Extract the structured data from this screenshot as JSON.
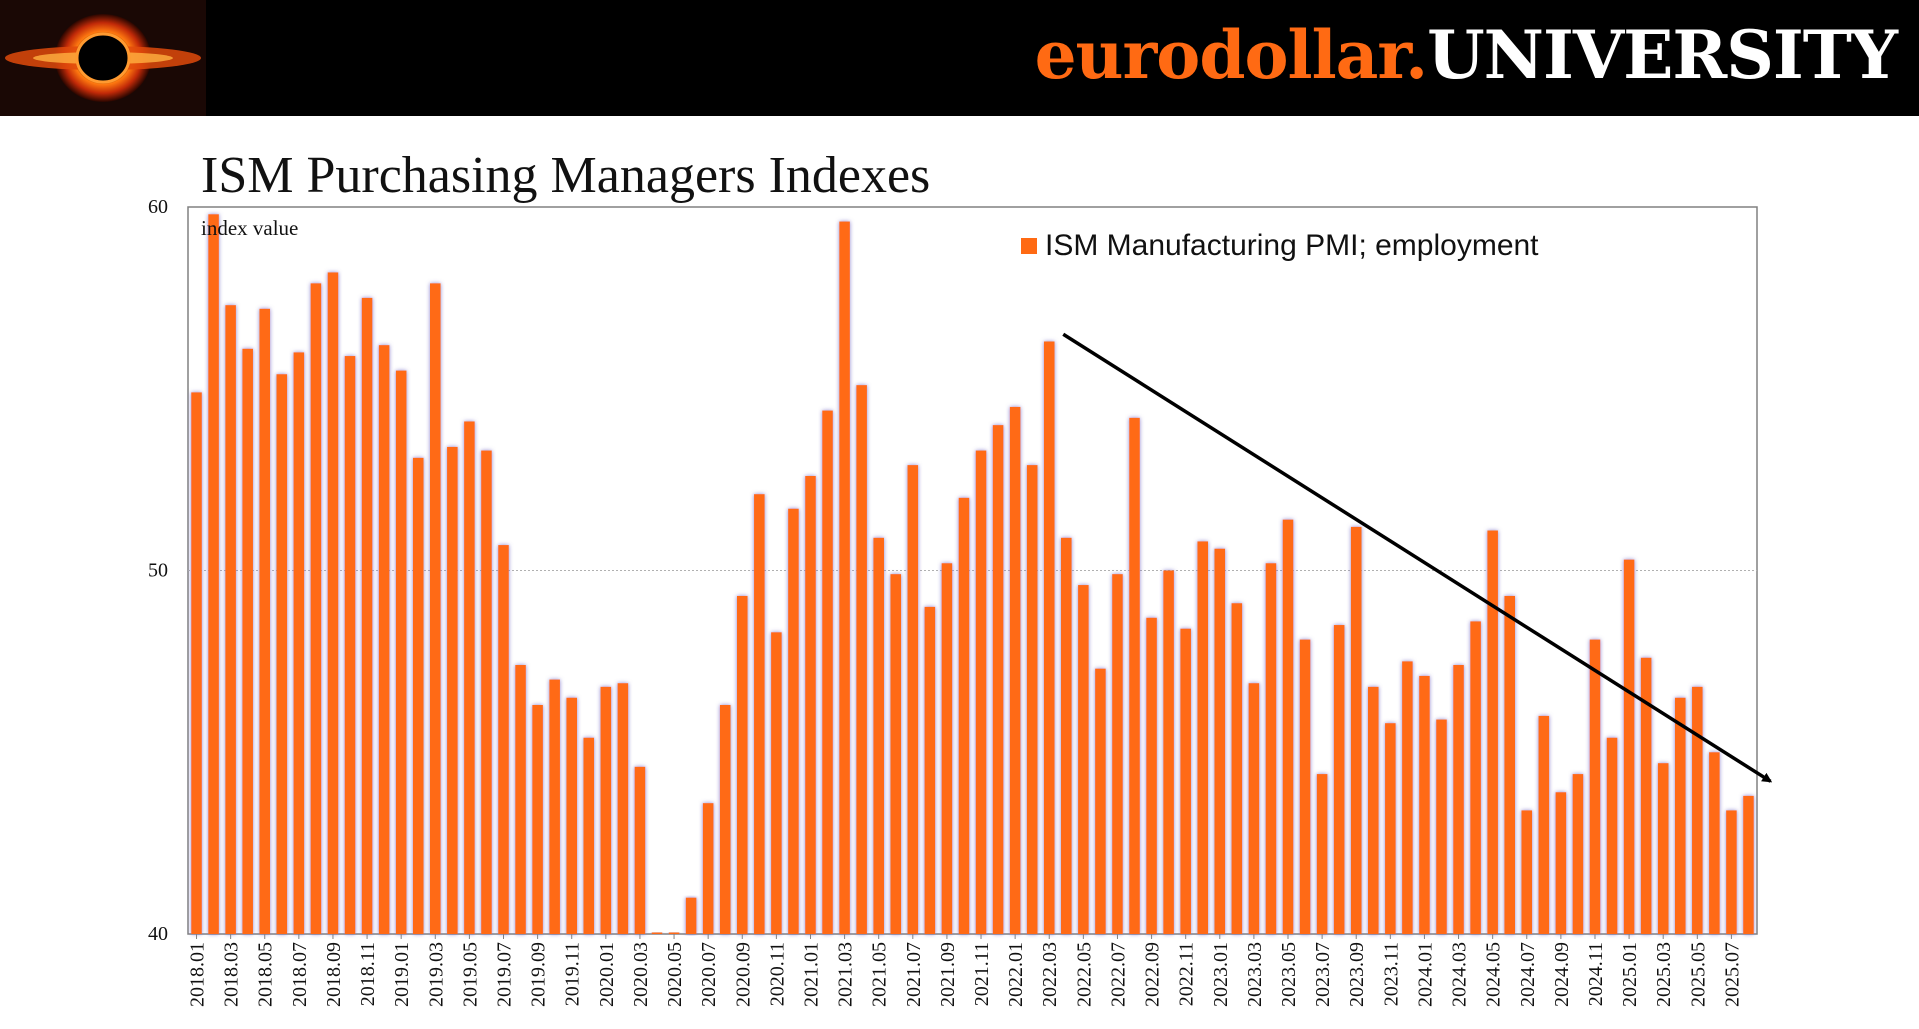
{
  "header": {
    "brand_main": "eurodollar.",
    "brand_accent": "UNIVERSITY",
    "colors": {
      "background": "#000000",
      "accent": "#ff6a13",
      "text": "#ffffff"
    }
  },
  "chart_data": {
    "type": "bar",
    "title": "ISM Purchasing Managers Indexes",
    "ylabel": "index value",
    "ylim": [
      40,
      60
    ],
    "yticks": [
      40,
      50,
      60
    ],
    "legend_position": "top-right",
    "grid": "horizontal line at 50",
    "bar_color": "#ff6a13",
    "categories": [
      "2018.01",
      "2018.02",
      "2018.03",
      "2018.04",
      "2018.05",
      "2018.06",
      "2018.07",
      "2018.08",
      "2018.09",
      "2018.10",
      "2018.11",
      "2018.12",
      "2019.01",
      "2019.02",
      "2019.03",
      "2019.04",
      "2019.05",
      "2019.06",
      "2019.07",
      "2019.08",
      "2019.09",
      "2019.10",
      "2019.11",
      "2019.12",
      "2020.01",
      "2020.02",
      "2020.03",
      "2020.04",
      "2020.05",
      "2020.06",
      "2020.07",
      "2020.08",
      "2020.09",
      "2020.10",
      "2020.11",
      "2020.12",
      "2021.01",
      "2021.02",
      "2021.03",
      "2021.04",
      "2021.05",
      "2021.06",
      "2021.07",
      "2021.08",
      "2021.09",
      "2021.10",
      "2021.11",
      "2021.12",
      "2022.01",
      "2022.02",
      "2022.03",
      "2022.04",
      "2022.05",
      "2022.06",
      "2022.07",
      "2022.08",
      "2022.09",
      "2022.10",
      "2022.11",
      "2022.12",
      "2023.01",
      "2023.02",
      "2023.03",
      "2023.04",
      "2023.05",
      "2023.06",
      "2023.07",
      "2023.08",
      "2023.09",
      "2023.10",
      "2023.11",
      "2023.12",
      "2024.01",
      "2024.02",
      "2024.03",
      "2024.04",
      "2024.05",
      "2024.06",
      "2024.07",
      "2024.08",
      "2024.09",
      "2024.10",
      "2024.11",
      "2024.12",
      "2025.01",
      "2025.02",
      "2025.03",
      "2025.04",
      "2025.05",
      "2025.06",
      "2025.07",
      "2025.08"
    ],
    "series": [
      {
        "name": "ISM Manufacturing PMI; employment",
        "values": [
          54.9,
          59.8,
          57.3,
          56.1,
          57.2,
          55.4,
          56.0,
          57.9,
          58.2,
          55.9,
          57.5,
          56.2,
          55.5,
          53.1,
          57.9,
          53.4,
          54.1,
          53.3,
          50.7,
          47.4,
          46.3,
          47.0,
          46.5,
          45.4,
          46.8,
          46.9,
          44.6,
          40.0,
          40.0,
          41.0,
          43.6,
          46.3,
          49.3,
          52.1,
          48.3,
          51.7,
          52.6,
          54.4,
          59.6,
          55.1,
          50.9,
          49.9,
          52.9,
          49.0,
          50.2,
          52.0,
          53.3,
          54.0,
          54.5,
          52.9,
          56.3,
          50.9,
          49.6,
          47.3,
          49.9,
          54.2,
          48.7,
          50.0,
          48.4,
          50.8,
          50.6,
          49.1,
          46.9,
          50.2,
          51.4,
          48.1,
          44.4,
          48.5,
          51.2,
          46.8,
          45.8,
          47.5,
          47.1,
          45.9,
          47.4,
          48.6,
          51.1,
          49.3,
          43.4,
          46.0,
          43.9,
          44.4,
          48.1,
          45.4,
          50.3,
          47.6,
          44.7,
          46.5,
          46.8,
          45.0,
          43.4,
          43.8
        ]
      }
    ],
    "annotation": "downward trend arrow from 2022.03 to 2025.08"
  }
}
